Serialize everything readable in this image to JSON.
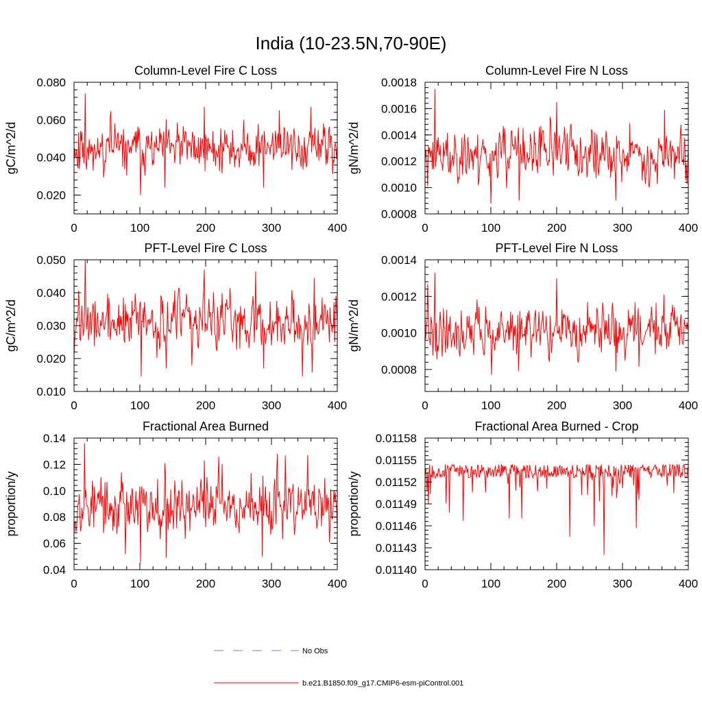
{
  "page": {
    "title": "India (10-23.5N,70-90E)"
  },
  "legend": {
    "obs_label": "No Obs",
    "model_label": "b.e21.B1850.f09_g17.CMIP6-esm-piControl.001",
    "obs_color": "#7777cc",
    "model_color": "#ff0000"
  },
  "chart_data": [
    {
      "type": "line",
      "title": "Column-Level Fire C Loss",
      "xlabel": "",
      "ylabel": "gC/m^2/d",
      "xlim": [
        0,
        400
      ],
      "ylim": [
        0.01,
        0.08
      ],
      "xticks": [
        0,
        100,
        200,
        300,
        400
      ],
      "xtick_labels": [
        "0",
        "100",
        "200",
        "300",
        "400"
      ],
      "yticks": [
        0.02,
        0.04,
        0.06,
        0.08
      ],
      "ytick_labels": [
        "0.020",
        "0.040",
        "0.060",
        "0.080"
      ],
      "series": [
        {
          "color": "#ff0000",
          "mean": 0.045,
          "amp": 0.008,
          "min": 0.02,
          "max": 0.074,
          "seed": 11,
          "peaks": [
            [
              17,
              0.074
            ],
            [
              198,
              0.067
            ],
            [
              101,
              0.02
            ],
            [
              288,
              0.024
            ],
            [
              360,
              0.067
            ],
            [
              312,
              0.065
            ],
            [
              138,
              0.024
            ]
          ]
        }
      ]
    },
    {
      "type": "line",
      "title": "Column-Level Fire N Loss",
      "xlabel": "",
      "ylabel": "gN/m^2/d",
      "xlim": [
        0,
        400
      ],
      "ylim": [
        0.0008,
        0.0018
      ],
      "xticks": [
        0,
        100,
        200,
        300,
        400
      ],
      "xtick_labels": [
        "0",
        "100",
        "200",
        "300",
        "400"
      ],
      "yticks": [
        0.0008,
        0.001,
        0.0012,
        0.0014,
        0.0016,
        0.0018
      ],
      "ytick_labels": [
        "0.0008",
        "0.0010",
        "0.0012",
        "0.0014",
        "0.0016",
        "0.0018"
      ],
      "series": [
        {
          "color": "#ff0000",
          "mean": 0.00125,
          "amp": 0.00013,
          "min": 0.00088,
          "max": 0.00175,
          "seed": 23,
          "peaks": [
            [
              15,
              0.00175
            ],
            [
              200,
              0.00165
            ],
            [
              100,
              0.00088
            ],
            [
              290,
              0.0009
            ],
            [
              364,
              0.00159
            ],
            [
              143,
              0.0009
            ]
          ]
        }
      ]
    },
    {
      "type": "line",
      "title": "PFT-Level Fire C Loss",
      "xlabel": "",
      "ylabel": "gC/m^2/d",
      "xlim": [
        0,
        400
      ],
      "ylim": [
        0.01,
        0.05
      ],
      "xticks": [
        0,
        100,
        200,
        300,
        400
      ],
      "xtick_labels": [
        "0",
        "100",
        "200",
        "300",
        "400"
      ],
      "yticks": [
        0.01,
        0.02,
        0.03,
        0.04,
        0.05
      ],
      "ytick_labels": [
        "0.010",
        "0.020",
        "0.030",
        "0.040",
        "0.050"
      ],
      "series": [
        {
          "color": "#ff0000",
          "mean": 0.031,
          "amp": 0.0055,
          "min": 0.0145,
          "max": 0.05,
          "seed": 37,
          "peaks": [
            [
              17,
              0.05
            ],
            [
              198,
              0.047
            ],
            [
              102,
              0.0145
            ],
            [
              288,
              0.017
            ],
            [
              365,
              0.0445
            ],
            [
              140,
              0.017
            ]
          ]
        }
      ]
    },
    {
      "type": "line",
      "title": "PFT-Level Fire N Loss",
      "xlabel": "",
      "ylabel": "gN/m^2/d",
      "xlim": [
        0,
        400
      ],
      "ylim": [
        0.00068,
        0.0014
      ],
      "xticks": [
        0,
        100,
        200,
        300,
        400
      ],
      "xtick_labels": [
        "0",
        "100",
        "200",
        "300",
        "400"
      ],
      "yticks": [
        0.0008,
        0.001,
        0.0012,
        0.0014
      ],
      "ytick_labels": [
        "0.0008",
        "0.0010",
        "0.0012",
        "0.0014"
      ],
      "series": [
        {
          "color": "#ff0000",
          "mean": 0.00101,
          "amp": 9e-05,
          "min": 0.00077,
          "max": 0.00133,
          "seed": 41,
          "peaks": [
            [
              15,
              0.00133
            ],
            [
              200,
              0.0013
            ],
            [
              101,
              0.00077
            ],
            [
              290,
              0.00079
            ],
            [
              363,
              0.00121
            ],
            [
              142,
              0.00079
            ]
          ]
        }
      ]
    },
    {
      "type": "line",
      "title": "Fractional Area Burned",
      "xlabel": "",
      "ylabel": "proportion/y",
      "xlim": [
        0,
        400
      ],
      "ylim": [
        0.04,
        0.14
      ],
      "xticks": [
        0,
        100,
        200,
        300,
        400
      ],
      "xtick_labels": [
        "0",
        "100",
        "200",
        "300",
        "400"
      ],
      "yticks": [
        0.04,
        0.06,
        0.08,
        0.1,
        0.12,
        0.14
      ],
      "ytick_labels": [
        "0.04",
        "0.06",
        "0.08",
        "0.10",
        "0.12",
        "0.14"
      ],
      "series": [
        {
          "color": "#ff0000",
          "mean": 0.088,
          "amp": 0.014,
          "min": 0.045,
          "max": 0.136,
          "seed": 53,
          "peaks": [
            [
              16,
              0.136
            ],
            [
              309,
              0.128
            ],
            [
              355,
              0.127
            ],
            [
              101,
              0.045
            ],
            [
              140,
              0.049
            ],
            [
              286,
              0.05
            ],
            [
              138,
              0.121
            ],
            [
              198,
              0.123
            ]
          ]
        }
      ]
    },
    {
      "type": "line",
      "title": "Fractional Area Burned - Crop",
      "xlabel": "",
      "ylabel": "proportion/y",
      "xlim": [
        0,
        400
      ],
      "ylim": [
        0.0114,
        0.01158
      ],
      "xticks": [
        0,
        100,
        200,
        300,
        400
      ],
      "xtick_labels": [
        "0",
        "100",
        "200",
        "300",
        "400"
      ],
      "yticks": [
        0.0114,
        0.01143,
        0.01146,
        0.01149,
        0.01152,
        0.01155,
        0.01158
      ],
      "ytick_labels": [
        "0.01140",
        "0.01143",
        "0.01146",
        "0.01149",
        "0.01152",
        "0.01155",
        "0.01158"
      ],
      "series": [
        {
          "color": "#ff0000",
          "mean": 0.011535,
          "amp": 1.2e-05,
          "min": 0.01142,
          "max": 0.011553,
          "seed": 67,
          "spiky_down": true,
          "peaks": [
            [
              272,
              0.01142
            ],
            [
              220,
              0.011445
            ],
            [
              257,
              0.01146
            ],
            [
              128,
              0.01147
            ],
            [
              321,
              0.011457
            ],
            [
              58,
              0.011467
            ],
            [
              37,
              0.011478
            ],
            [
              5,
              0.01149
            ],
            [
              147,
              0.01147
            ]
          ]
        }
      ]
    }
  ]
}
